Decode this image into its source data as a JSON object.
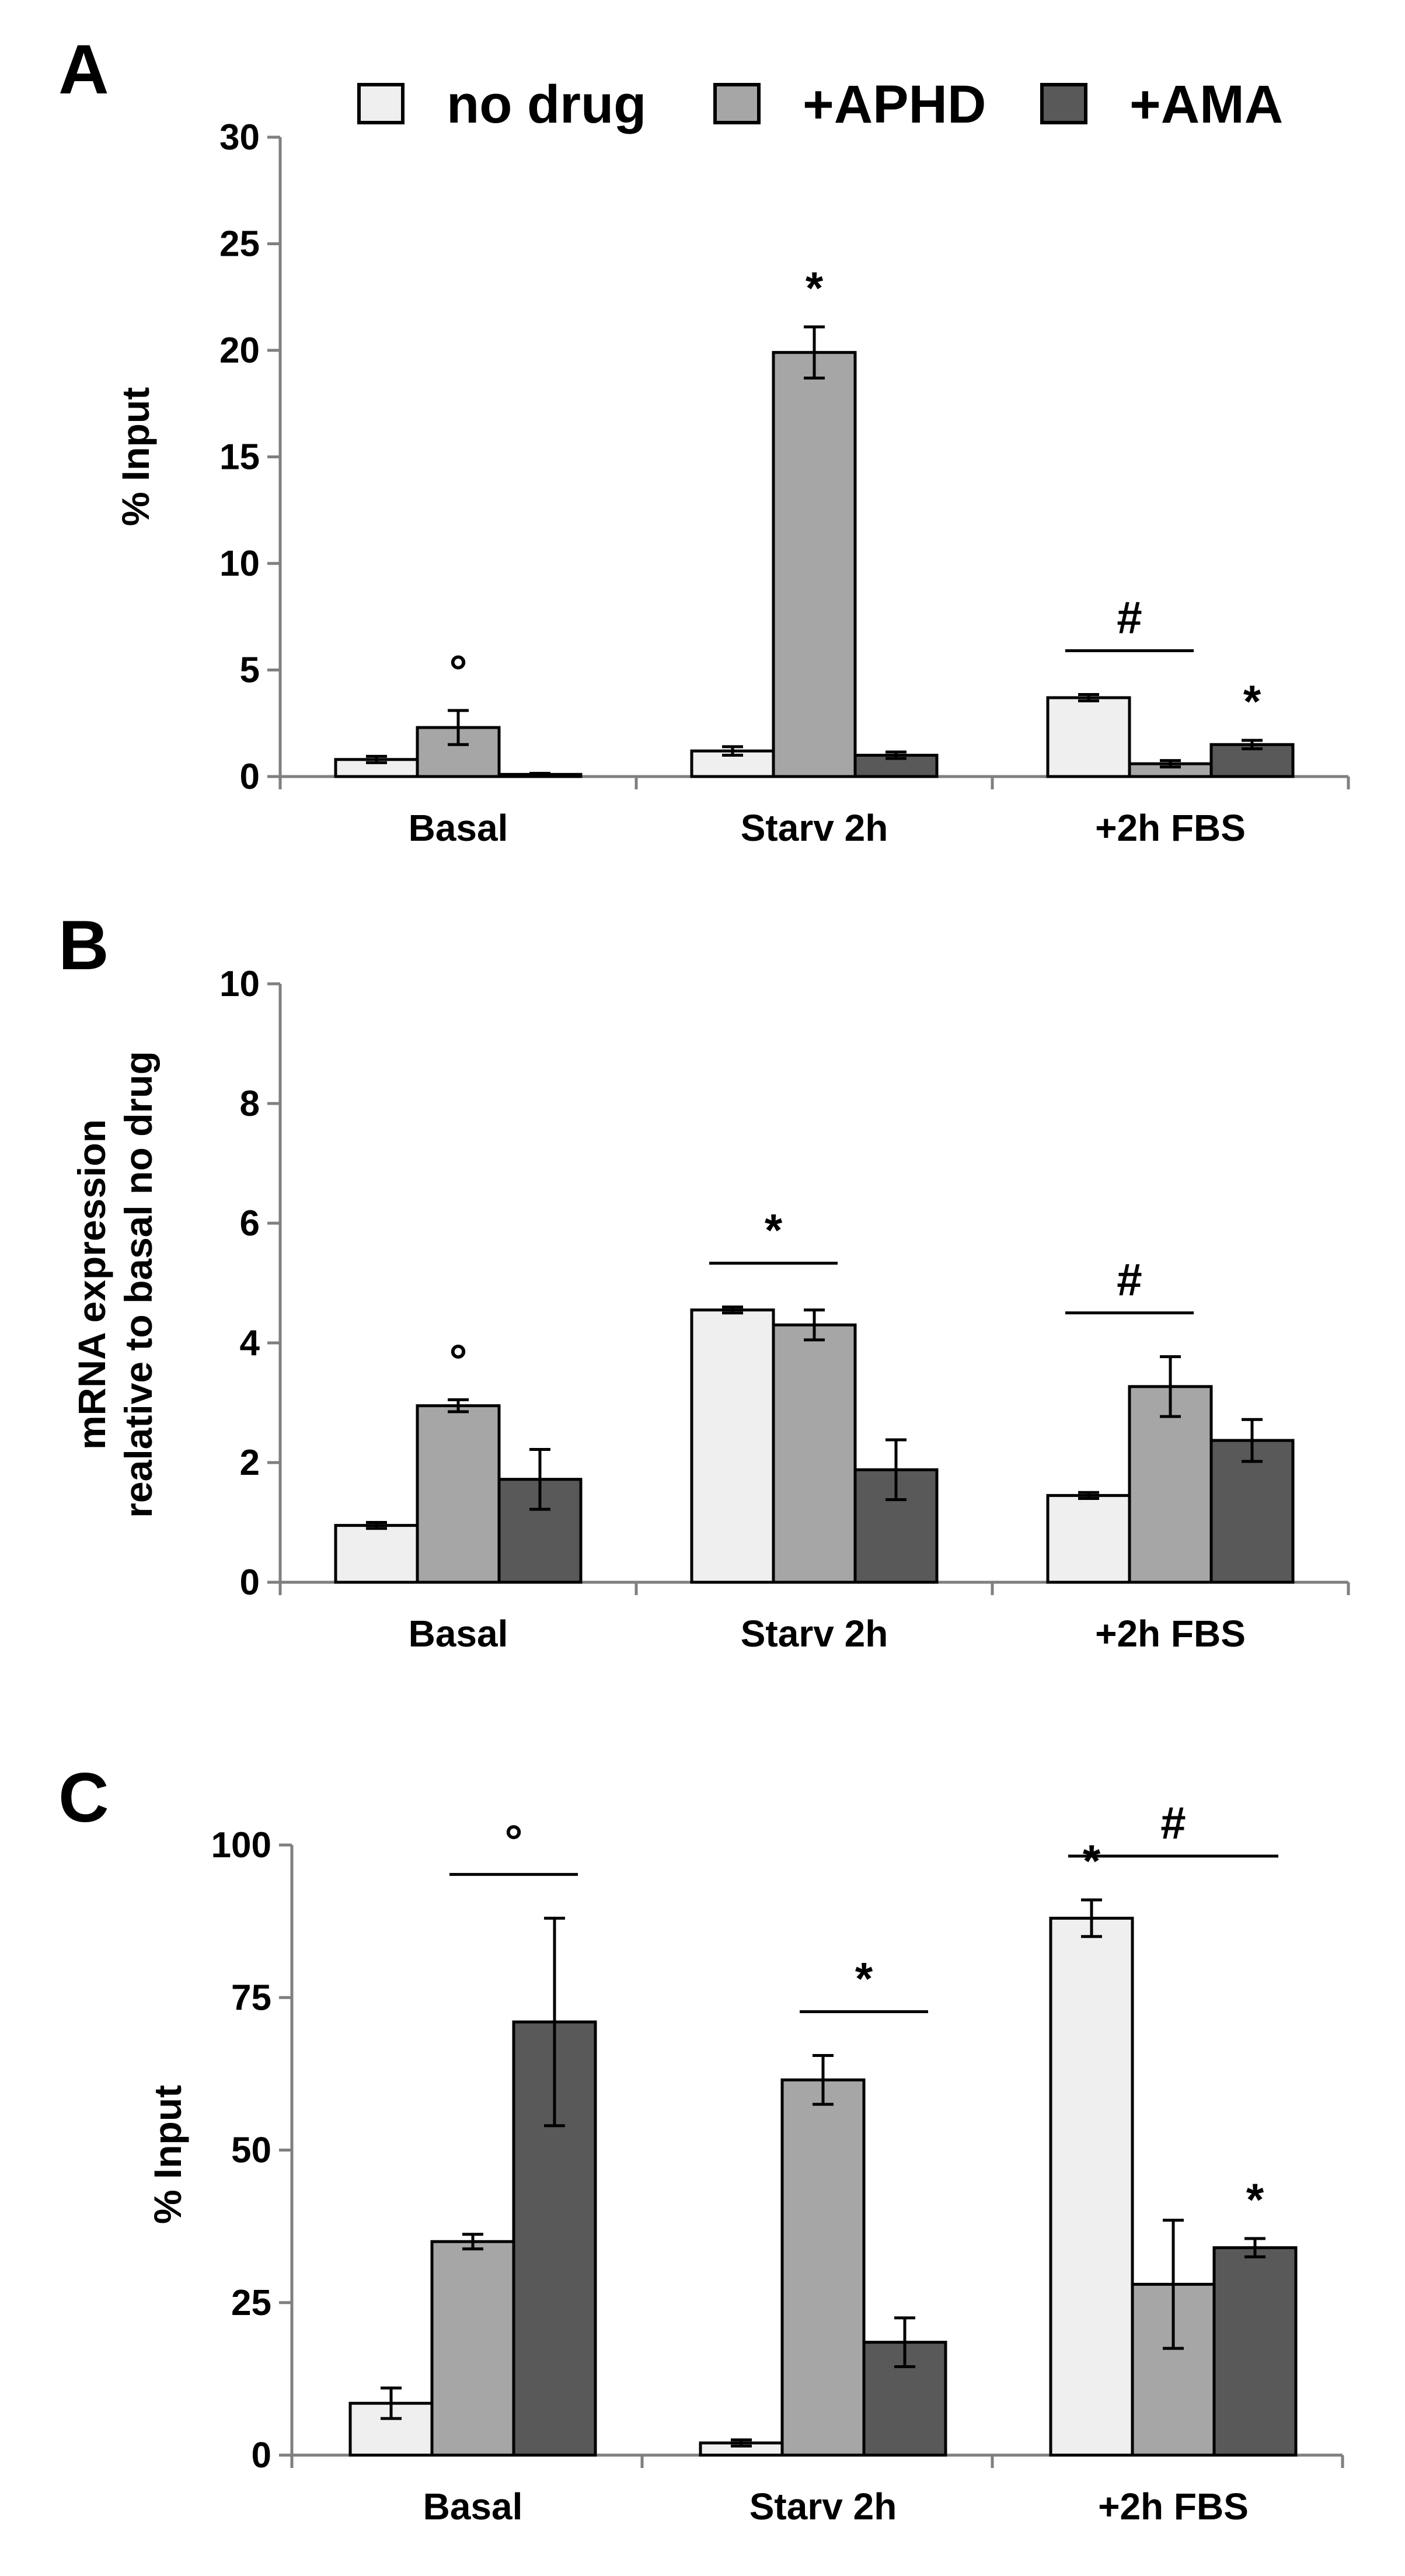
{
  "legend": [
    {
      "label": "no drug",
      "color": "#efefef"
    },
    {
      "label": "+APHD",
      "color": "#a6a6a6"
    },
    {
      "label": "+AMA",
      "color": "#595959"
    }
  ],
  "chart_data": [
    {
      "panel": "A",
      "type": "bar",
      "ylabel": "% Input",
      "ylim": [
        0,
        30
      ],
      "yticks": [
        0,
        5,
        10,
        15,
        20,
        25,
        30
      ],
      "categories": [
        "Basal",
        "Starv 2h",
        "+2h FBS"
      ],
      "series": [
        {
          "name": "no drug",
          "color": "#efefef",
          "values": [
            0.8,
            1.2,
            3.7
          ],
          "errors": [
            0.15,
            0.2,
            0.15
          ]
        },
        {
          "name": "+APHD",
          "color": "#a6a6a6",
          "values": [
            2.3,
            19.9,
            0.6
          ],
          "errors": [
            0.8,
            1.2,
            0.15
          ]
        },
        {
          "name": "+AMA",
          "color": "#595959",
          "values": [
            0.1,
            1.0,
            1.5
          ],
          "errors": [
            0.05,
            0.15,
            0.2
          ]
        }
      ],
      "annotations": [
        {
          "symbol": "°",
          "category": 0,
          "series": 1
        },
        {
          "symbol": "*",
          "category": 1,
          "series": 1
        },
        {
          "symbol": "#",
          "category": 2,
          "from_series": 0,
          "to_series": 1
        },
        {
          "symbol": "*",
          "category": 2,
          "series": 2
        }
      ]
    },
    {
      "panel": "B",
      "type": "bar",
      "ylabel": "mRNA expression\nrealative to basal no drug",
      "ylim": [
        0,
        10
      ],
      "yticks": [
        0,
        2,
        4,
        6,
        8,
        10
      ],
      "categories": [
        "Basal",
        "Starv 2h",
        "+2h FBS"
      ],
      "series": [
        {
          "name": "no drug",
          "color": "#efefef",
          "values": [
            0.95,
            4.55,
            1.45
          ],
          "errors": [
            0.05,
            0.05,
            0.05
          ]
        },
        {
          "name": "+APHD",
          "color": "#a6a6a6",
          "values": [
            2.95,
            4.3,
            3.27
          ],
          "errors": [
            0.1,
            0.25,
            0.5
          ]
        },
        {
          "name": "+AMA",
          "color": "#595959",
          "values": [
            1.72,
            1.88,
            2.37
          ],
          "errors": [
            0.5,
            0.5,
            0.35
          ]
        }
      ],
      "annotations": [
        {
          "symbol": "°",
          "category": 0,
          "series": 1
        },
        {
          "symbol": "*",
          "category": 1,
          "from_series": 0,
          "to_series": 1
        },
        {
          "symbol": "#",
          "category": 2,
          "from_series": 0,
          "to_series": 1
        }
      ]
    },
    {
      "panel": "C",
      "type": "bar",
      "ylabel": "% Input",
      "ylim": [
        0,
        100
      ],
      "yticks": [
        0,
        25,
        50,
        75,
        100
      ],
      "categories": [
        "Basal",
        "Starv 2h",
        "+2h FBS"
      ],
      "series": [
        {
          "name": "no drug",
          "color": "#efefef",
          "values": [
            8.5,
            2.0,
            88.0
          ],
          "errors": [
            2.5,
            0.5,
            3.0
          ]
        },
        {
          "name": "+APHD",
          "color": "#a6a6a6",
          "values": [
            35.0,
            61.5,
            28.0
          ],
          "errors": [
            1.2,
            4.0,
            10.5
          ]
        },
        {
          "name": "+AMA",
          "color": "#595959",
          "values": [
            71.0,
            18.5,
            34.0
          ],
          "errors": [
            17.0,
            4.0,
            1.5
          ]
        }
      ],
      "annotations": [
        {
          "symbol": "°",
          "category": 0,
          "from_series": 1,
          "to_series": 2
        },
        {
          "symbol": "*",
          "category": 1,
          "from_series": 1,
          "to_series": 2
        },
        {
          "symbol": "#",
          "category": 2,
          "from_series": 0,
          "to_series": 2
        },
        {
          "symbol": "*",
          "category": 2,
          "series": 0
        },
        {
          "symbol": "*",
          "category": 2,
          "series": 2
        }
      ]
    }
  ]
}
